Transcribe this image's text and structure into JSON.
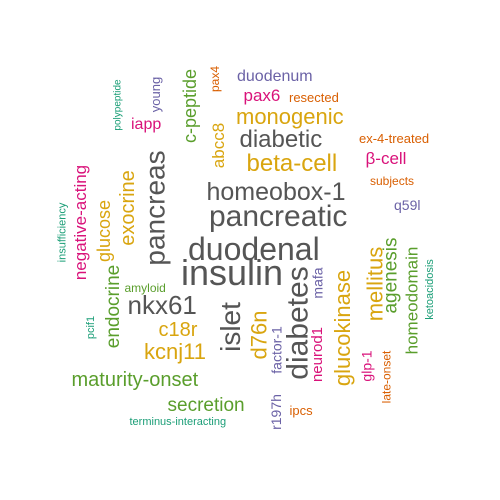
{
  "colors": {
    "dark_gray": "#555555",
    "olive_green": "#5A9E2C",
    "mustard": "#D9A50F",
    "magenta": "#D9127A",
    "purple": "#6B62A6",
    "orange": "#D95F02",
    "teal": "#1B9E77"
  },
  "words": [
    {
      "text": "insulin",
      "color": "#555555",
      "vertical": false
    },
    {
      "text": "duodenal",
      "color": "#555555",
      "vertical": false
    },
    {
      "text": "pancreatic",
      "color": "#555555",
      "vertical": false
    },
    {
      "text": "homeobox-1",
      "color": "#555555",
      "vertical": false
    },
    {
      "text": "pancreas",
      "color": "#555555",
      "vertical": true
    },
    {
      "text": "diabetes",
      "color": "#555555",
      "vertical": true
    },
    {
      "text": "islet",
      "color": "#555555",
      "vertical": true
    },
    {
      "text": "beta-cell",
      "color": "#D9A50F",
      "vertical": false
    },
    {
      "text": "diabetic",
      "color": "#555555",
      "vertical": false
    },
    {
      "text": "monogenic",
      "color": "#D9A50F",
      "vertical": false
    },
    {
      "text": "nkx61",
      "color": "#555555",
      "vertical": false
    },
    {
      "text": "d76n",
      "color": "#D9A50F",
      "vertical": true
    },
    {
      "text": "glucokinase",
      "color": "#D9A50F",
      "vertical": true
    },
    {
      "text": "mellitus",
      "color": "#D9A50F",
      "vertical": true
    },
    {
      "text": "exocrine",
      "color": "#D9A50F",
      "vertical": true
    },
    {
      "text": "glucose",
      "color": "#D9A50F",
      "vertical": true
    },
    {
      "text": "kcnj11",
      "color": "#D9A50F",
      "vertical": false
    },
    {
      "text": "c18r",
      "color": "#D9A50F",
      "vertical": false
    },
    {
      "text": "maturity-onset",
      "color": "#5A9E2C",
      "vertical": false
    },
    {
      "text": "secretion",
      "color": "#5A9E2C",
      "vertical": false
    },
    {
      "text": "endocrine",
      "color": "#5A9E2C",
      "vertical": true
    },
    {
      "text": "agenesis",
      "color": "#5A9E2C",
      "vertical": true
    },
    {
      "text": "homeodomain",
      "color": "#5A9E2C",
      "vertical": true
    },
    {
      "text": "c-peptide",
      "color": "#5A9E2C",
      "vertical": true
    },
    {
      "text": "negative-acting",
      "color": "#D9127A",
      "vertical": true
    },
    {
      "text": "abcc8",
      "color": "#D9A50F",
      "vertical": true
    },
    {
      "text": "β-cell",
      "color": "#D9127A",
      "vertical": false
    },
    {
      "text": "pax6",
      "color": "#D9127A",
      "vertical": false
    },
    {
      "text": "iapp",
      "color": "#D9127A",
      "vertical": false
    },
    {
      "text": "glp-1",
      "color": "#D9127A",
      "vertical": true
    },
    {
      "text": "neurod1",
      "color": "#D9127A",
      "vertical": true
    },
    {
      "text": "factor-1",
      "color": "#6B62A6",
      "vertical": true
    },
    {
      "text": "r197h",
      "color": "#6B62A6",
      "vertical": true
    },
    {
      "text": "mafa",
      "color": "#6B62A6",
      "vertical": true
    },
    {
      "text": "duodenum",
      "color": "#6B62A6",
      "vertical": false
    },
    {
      "text": "q59l",
      "color": "#6B62A6",
      "vertical": false
    },
    {
      "text": "young",
      "color": "#6B62A6",
      "vertical": true
    },
    {
      "text": "ex-4-treated",
      "color": "#D95F02",
      "vertical": false
    },
    {
      "text": "resected",
      "color": "#D95F02",
      "vertical": false
    },
    {
      "text": "subjects",
      "color": "#D95F02",
      "vertical": false
    },
    {
      "text": "ipcs",
      "color": "#D95F02",
      "vertical": false
    },
    {
      "text": "late-onset",
      "color": "#D95F02",
      "vertical": true
    },
    {
      "text": "pax4",
      "color": "#D95F02",
      "vertical": true
    },
    {
      "text": "ketoacidosis",
      "color": "#1B9E77",
      "vertical": true
    },
    {
      "text": "amyloid",
      "color": "#5A9E2C",
      "vertical": false
    },
    {
      "text": "terminus-interacting",
      "color": "#1B9E77",
      "vertical": false
    },
    {
      "text": "insufficiency",
      "color": "#1B9E77",
      "vertical": true
    },
    {
      "text": "polypeptide",
      "color": "#1B9E77",
      "vertical": true
    },
    {
      "text": "pcif1",
      "color": "#1B9E77",
      "vertical": true
    }
  ]
}
